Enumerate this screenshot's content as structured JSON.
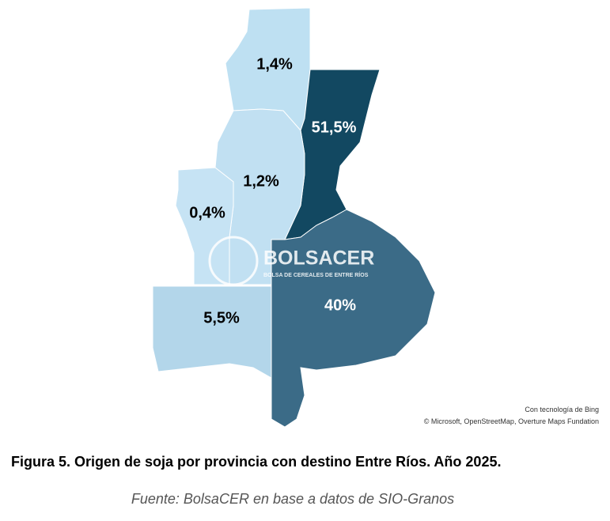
{
  "chart_data": {
    "type": "choropleth",
    "title": "Figura 5. Origen de soja por provincia con destino Entre Ríos. Año 2025.",
    "source": "Fuente: BolsaCER en base a datos de SIO-Granos",
    "values": [
      1.4,
      51.5,
      1.2,
      0.4,
      5.5,
      40
    ],
    "value_labels": [
      "1,4%",
      "51,5%",
      "1,2%",
      "0,4%",
      "5,5%",
      "40%"
    ],
    "colors": [
      "#bee0f2",
      "#124861",
      "#c1e0f2",
      "#c6e3f4",
      "#b3d6ea",
      "#3b6b87"
    ]
  },
  "watermark": {
    "name": "BOLSACER",
    "subtitle": "BOLSA DE CEREALES DE ENTRE RÍOS"
  },
  "attribution": [
    "Con tecnología de Bing",
    "© Microsoft, OpenStreetMap, Overture Maps Fundation"
  ]
}
